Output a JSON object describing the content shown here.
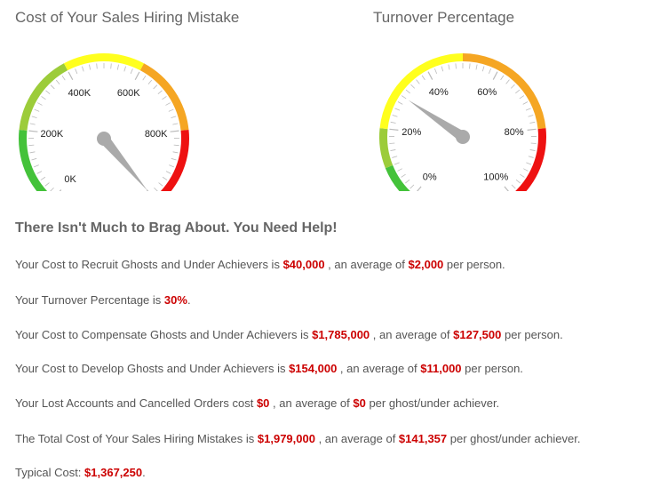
{
  "gauges": [
    {
      "id": "cost",
      "title": "Cost of Your Sales Hiring Mistake",
      "tick_labels": [
        "0K",
        "200K",
        "400K",
        "600K",
        "800K"
      ],
      "scale": [
        0,
        1000
      ],
      "value": 1000,
      "bands": [
        {
          "from": 0,
          "to": 20,
          "color": "#44c23a"
        },
        {
          "from": 20,
          "to": 40,
          "color": "#9ccc3a"
        },
        {
          "from": 40,
          "to": 60,
          "color": "#ffff1e"
        },
        {
          "from": 60,
          "to": 80,
          "color": "#f5a623"
        },
        {
          "from": 80,
          "to": 100,
          "color": "#ee1111"
        }
      ]
    },
    {
      "id": "turnover",
      "title": "Turnover Percentage",
      "tick_labels": [
        "0%",
        "20%",
        "40%",
        "60%",
        "80%",
        "100%"
      ],
      "scale": [
        0,
        100
      ],
      "value": 30,
      "bands": [
        {
          "from": 0,
          "to": 10,
          "color": "#44c23a"
        },
        {
          "from": 10,
          "to": 20,
          "color": "#9ccc3a"
        },
        {
          "from": 20,
          "to": 50,
          "color": "#ffff1e"
        },
        {
          "from": 50,
          "to": 80,
          "color": "#f5a623"
        },
        {
          "from": 80,
          "to": 100,
          "color": "#ee1111"
        }
      ]
    }
  ],
  "colors": {
    "value_red": "#cc0000",
    "needle": "#aaaaaa",
    "tick": "#bbbbbb"
  },
  "message": "There Isn't Much to Brag About.  You Need Help!",
  "results": {
    "recruit": {
      "prefix": "Your Cost to Recruit Ghosts and Under Achievers is ",
      "value": "$40,000",
      "middle": " , an average of ",
      "avg": "$2,000",
      "suffix": " per person."
    },
    "turnover": {
      "prefix": "Your Turnover Percentage is ",
      "value": "30%",
      "suffix": "."
    },
    "compensate": {
      "prefix": "Your Cost to Compensate Ghosts and Under Achievers is ",
      "value": "$1,785,000",
      "middle": " , an average of ",
      "avg": "$127,500",
      "suffix": " per person."
    },
    "develop": {
      "prefix": "Your Cost to Develop Ghosts and Under Achievers is ",
      "value": "$154,000",
      "middle": " , an average of ",
      "avg": "$11,000",
      "suffix": " per person."
    },
    "lost": {
      "prefix": "Your Lost Accounts and Cancelled Orders cost ",
      "value": "$0",
      "middle": " , an average of ",
      "avg": "$0",
      "suffix": " per ghost/under achiever."
    },
    "total": {
      "prefix": "The Total Cost of Your Sales Hiring Mistakes is ",
      "value": "$1,979,000",
      "middle": " , an average of ",
      "avg": "$141,357",
      "suffix": " per ghost/under achiever."
    },
    "typical": {
      "prefix": "Typical Cost: ",
      "value": "$1,367,250",
      "suffix": "."
    }
  }
}
